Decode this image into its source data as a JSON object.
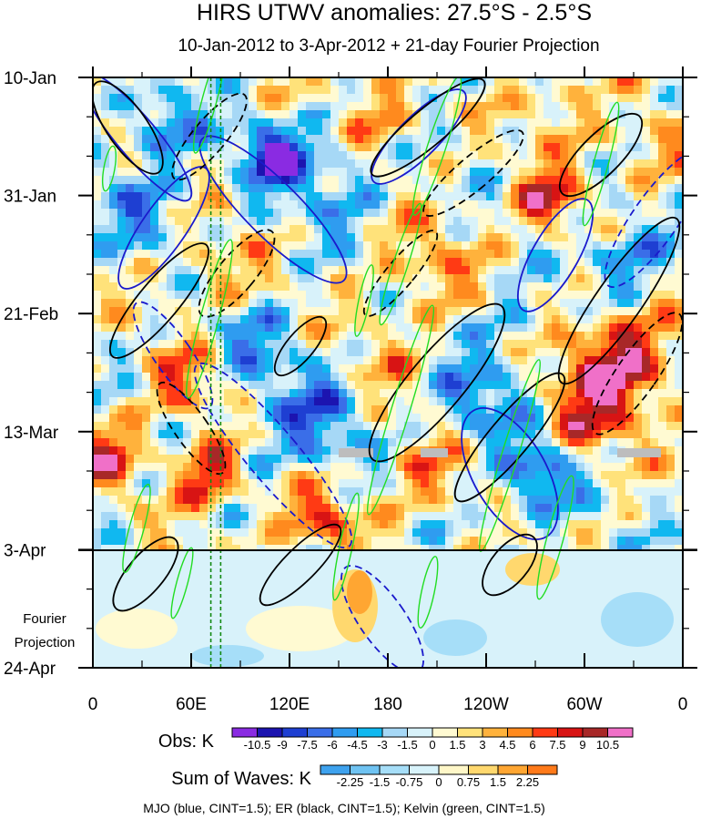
{
  "chart_data": {
    "type": "heatmap",
    "title": "HIRS UTWV anomalies: 27.5°S - 2.5°S",
    "subtitle": "10-Jan-2012 to 3-Apr-2012 + 21-day Fourier Projection",
    "xlabel": "",
    "ylabel": "",
    "x_ticks": [
      "0",
      "60E",
      "120E",
      "180",
      "120W",
      "60W",
      "0"
    ],
    "x_range_deg_east": [
      0,
      360
    ],
    "y_ticks": [
      "10-Jan",
      "31-Jan",
      "21-Feb",
      "13-Mar",
      "3-Apr",
      "24-Apr"
    ],
    "y_range_days_from_start": [
      0,
      105
    ],
    "observed_end_day": 84,
    "forecast_label": "Fourier Projection",
    "reference_longitudes_deg_east": [
      72,
      78
    ],
    "obs_colorbar": {
      "label": "Obs: K",
      "levels": [
        "-10.5",
        "-9",
        "-7.5",
        "-6",
        "-4.5",
        "-3",
        "-1.5",
        "0",
        "1.5",
        "3",
        "4.5",
        "6",
        "7.5",
        "9",
        "10.5"
      ],
      "colors": [
        "#8a2be2",
        "#1c14b0",
        "#1e3fd2",
        "#3a6ee8",
        "#2f9cf0",
        "#10b8f0",
        "#a6d8f6",
        "#d8f2fa",
        "#fffad2",
        "#ffe27a",
        "#ffb23c",
        "#ff8a1e",
        "#ff3a14",
        "#d81414",
        "#a82828",
        "#f070c8"
      ]
    },
    "waves_colorbar": {
      "label": "Sum of Waves: K",
      "levels": [
        "-2.25",
        "-1.5",
        "-0.75",
        "0",
        "0.75",
        "1.5",
        "2.25"
      ],
      "colors": [
        "#3ea2ee",
        "#6fc3f2",
        "#a6def8",
        "#d8f3fb",
        "#fff7c8",
        "#ffd86e",
        "#ffa632",
        "#ff7a1a"
      ]
    },
    "contour_series": [
      {
        "name": "MJO",
        "color": "#1a1acc",
        "cint": 1.5
      },
      {
        "name": "ER",
        "color": "#000000",
        "cint": 1.5
      },
      {
        "name": "Kelvin",
        "color": "#22dd22",
        "cint": 1.5
      }
    ],
    "caption": "MJO (blue, CINT=1.5); ER (black, CINT=1.5); Kelvin (green, CINT=1.5)"
  }
}
